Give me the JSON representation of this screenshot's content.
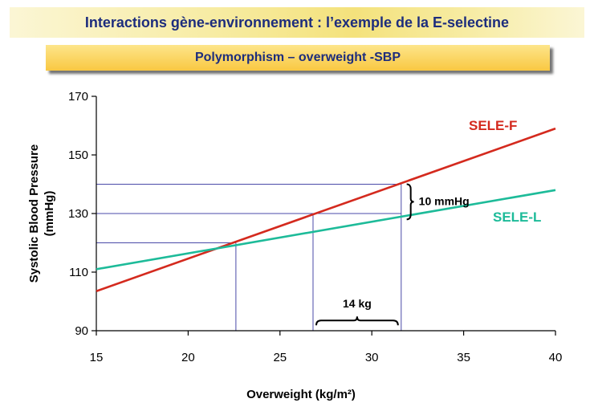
{
  "header": {
    "title": "Interactions gène-environnement : l’exemple de la E-selectine",
    "subtitle": "Polymorphism – overweight -SBP"
  },
  "colors": {
    "sele_f": "#d42a1e",
    "sele_l": "#1dbb99",
    "guide": "#4a4aa8",
    "title_text": "#1d2d7d"
  },
  "chart_data": {
    "type": "line",
    "title": "Polymorphism – overweight -SBP",
    "xlabel": "Overweight (kg/m²)",
    "ylabel_line1": "Systolic Blood Pressure",
    "ylabel_line2": "(mmHg)",
    "xlim": [
      15,
      40
    ],
    "ylim": [
      90,
      170
    ],
    "xticks": [
      15,
      20,
      25,
      30,
      35,
      40
    ],
    "yticks": [
      90,
      110,
      130,
      150,
      170
    ],
    "series": [
      {
        "name": "SELE-F",
        "x": [
          15,
          40
        ],
        "y": [
          103.5,
          159
        ]
      },
      {
        "name": "SELE-L",
        "x": [
          15,
          40
        ],
        "y": [
          111,
          138
        ]
      }
    ],
    "guides": {
      "horizontal": [
        {
          "y": 120,
          "x_end": 22.6
        },
        {
          "y": 130,
          "x_end": 31.6
        },
        {
          "y": 140,
          "x_end": 31.6
        }
      ],
      "vertical": [
        {
          "x": 22.6,
          "y_end": 120
        },
        {
          "x": 26.8,
          "y_end": 130
        },
        {
          "x": 31.6,
          "y_end": 140
        }
      ]
    },
    "annotations": [
      {
        "text": "10 mmHg",
        "type": "vertical-brace",
        "x": 31.9,
        "y_range": [
          128,
          140
        ]
      },
      {
        "text": "14 kg",
        "type": "horizontal-brace",
        "y": 93.5,
        "x_range": [
          26.8,
          31.6
        ]
      }
    ]
  }
}
